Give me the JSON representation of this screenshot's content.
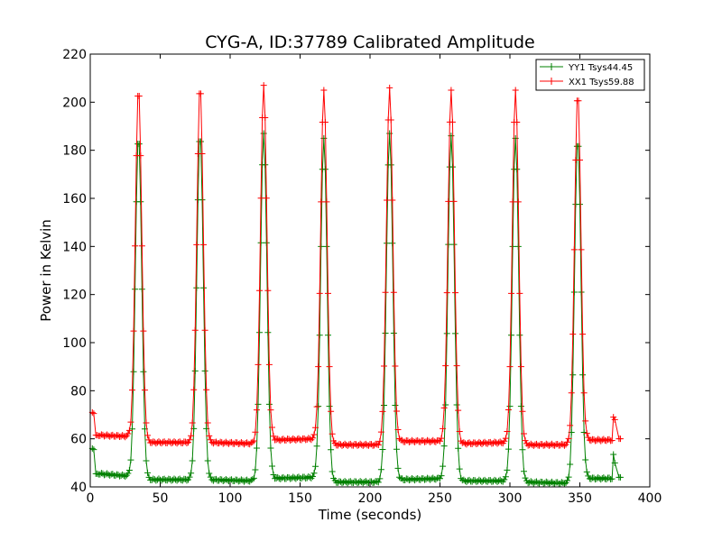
{
  "chart_data": {
    "type": "line",
    "title": "CYG-A, ID:37789 Calibrated Amplitude",
    "xlabel": "Time (seconds)",
    "ylabel": "Power in Kelvin",
    "xlim": [
      0,
      400
    ],
    "ylim": [
      40,
      220
    ],
    "xticks": [
      "0",
      "50",
      "100",
      "150",
      "200",
      "250",
      "300",
      "350",
      "400"
    ],
    "yticks": [
      "40",
      "60",
      "80",
      "100",
      "120",
      "140",
      "160",
      "180",
      "200",
      "220"
    ],
    "grid": false,
    "legend_position": "top-right",
    "marker": "+",
    "sample_interval_seconds": 1,
    "series": [
      {
        "name": "YY1 Tsys44.45",
        "color": "#008000",
        "peak_times": [
          34.5,
          78.5,
          124,
          167,
          214,
          258,
          304,
          348.5
        ],
        "peak_values": [
          186,
          187,
          187,
          185,
          187,
          186,
          185,
          185
        ],
        "baselines": [
          {
            "from": 6,
            "to": 28,
            "start": 45.5,
            "end": 44.5
          },
          {
            "from": 40,
            "to": 73,
            "start": 43,
            "end": 43
          },
          {
            "from": 84,
            "to": 118,
            "start": 43,
            "end": 42.5
          },
          {
            "from": 130,
            "to": 162,
            "start": 43.5,
            "end": 44
          },
          {
            "from": 173,
            "to": 209,
            "start": 42,
            "end": 42
          },
          {
            "from": 220,
            "to": 253,
            "start": 43,
            "end": 43.5
          },
          {
            "from": 264,
            "to": 299,
            "start": 42.5,
            "end": 42.5
          },
          {
            "from": 310,
            "to": 343,
            "start": 42,
            "end": 41.5
          },
          {
            "from": 354,
            "to": 373,
            "start": 43.5,
            "end": 43.5
          }
        ],
        "outliers": [
          {
            "x": 1.5,
            "y": 56
          },
          {
            "x": 2.5,
            "y": 55.5
          },
          {
            "x": 374,
            "y": 53.5
          },
          {
            "x": 375,
            "y": 50
          },
          {
            "x": 378,
            "y": 44
          },
          {
            "x": 379,
            "y": 44
          }
        ]
      },
      {
        "name": "XX1 Tsys59.88",
        "color": "#ff0000",
        "peak_times": [
          34.5,
          78.5,
          124,
          167,
          214,
          258,
          304,
          348.5
        ],
        "peak_values": [
          206,
          207,
          207,
          205,
          206,
          205,
          205,
          204
        ],
        "baselines": [
          {
            "from": 6,
            "to": 28,
            "start": 61.5,
            "end": 61
          },
          {
            "from": 40,
            "to": 73,
            "start": 58.5,
            "end": 58.5
          },
          {
            "from": 84,
            "to": 118,
            "start": 58.5,
            "end": 58
          },
          {
            "from": 130,
            "to": 162,
            "start": 59.5,
            "end": 60
          },
          {
            "from": 173,
            "to": 209,
            "start": 57.5,
            "end": 57.5
          },
          {
            "from": 220,
            "to": 253,
            "start": 59,
            "end": 59
          },
          {
            "from": 264,
            "to": 299,
            "start": 58,
            "end": 58.5
          },
          {
            "from": 310,
            "to": 343,
            "start": 57.5,
            "end": 57.5
          },
          {
            "from": 354,
            "to": 373,
            "start": 59.5,
            "end": 59.5
          }
        ],
        "outliers": [
          {
            "x": 1.5,
            "y": 71
          },
          {
            "x": 2.5,
            "y": 70.5
          },
          {
            "x": 374,
            "y": 69
          },
          {
            "x": 375,
            "y": 68
          },
          {
            "x": 378,
            "y": 60
          },
          {
            "x": 379,
            "y": 60
          }
        ]
      }
    ]
  }
}
